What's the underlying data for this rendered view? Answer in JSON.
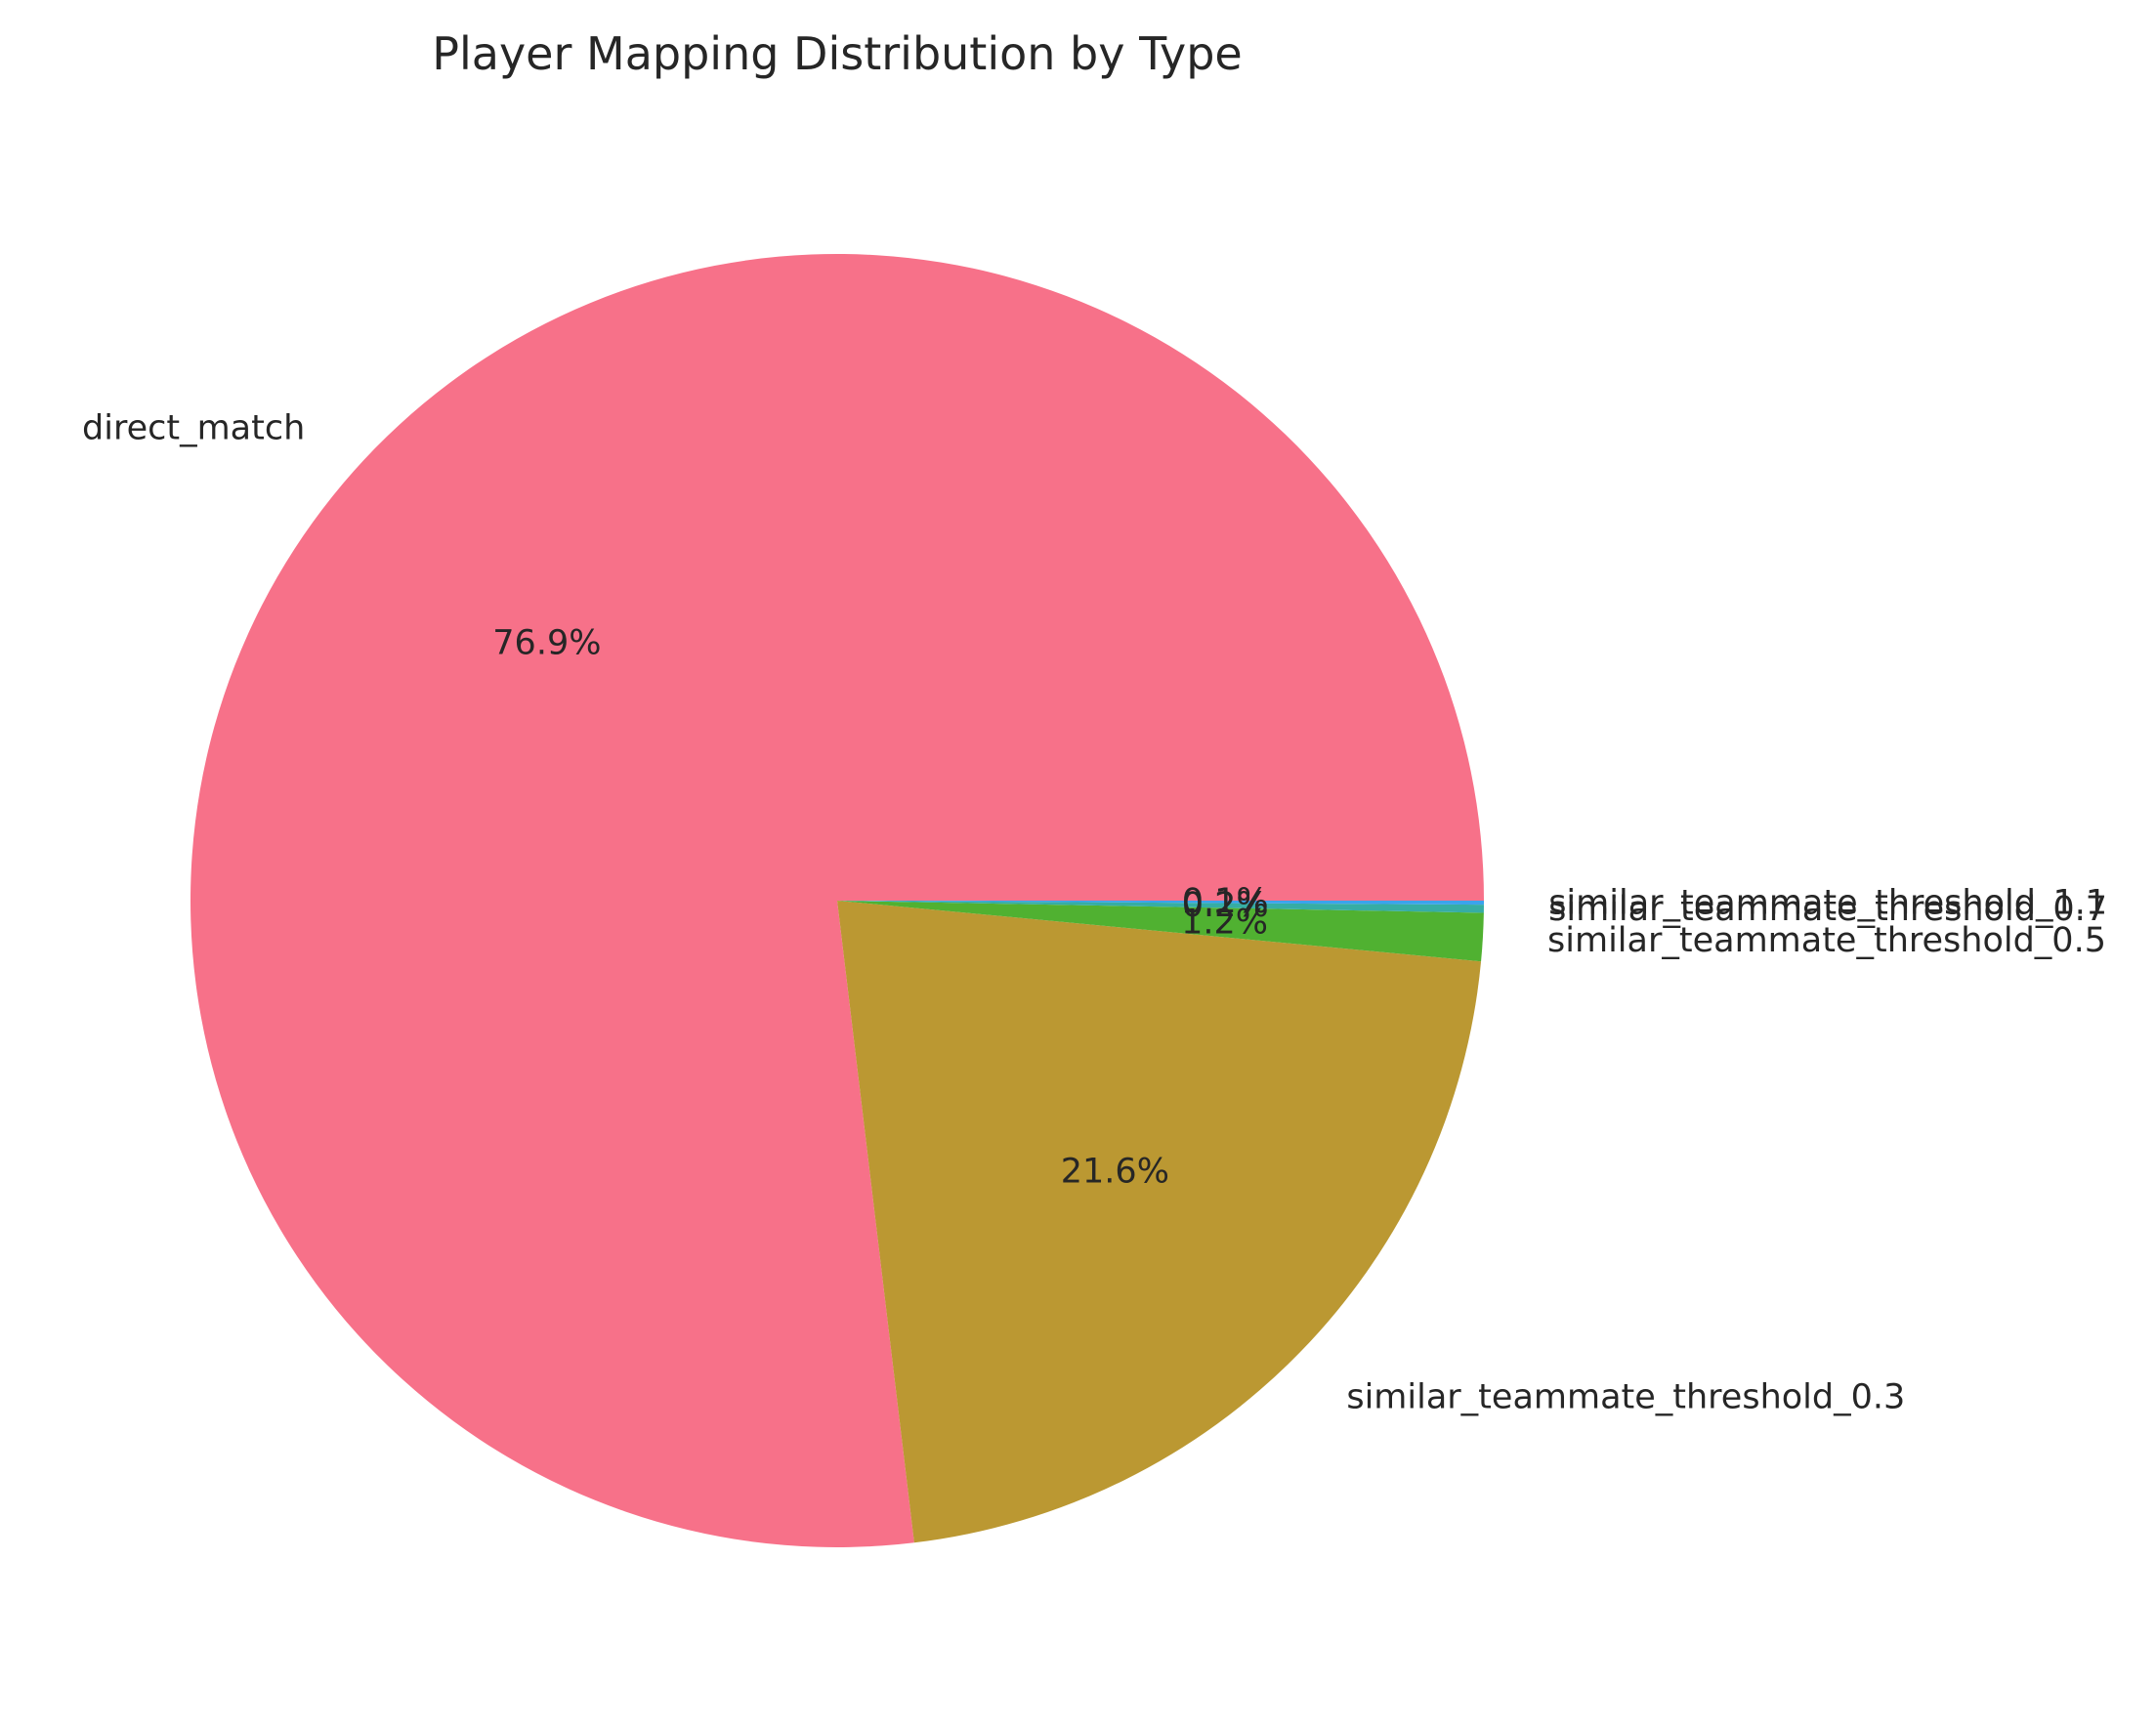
{
  "chart_data": {
    "type": "pie",
    "title": "Player Mapping Distribution by Type",
    "slices": [
      {
        "label": "direct_match",
        "value": 76.9,
        "pct_label": "76.9%",
        "color": "#f77189"
      },
      {
        "label": "similar_teammate_threshold_0.3",
        "value": 21.6,
        "pct_label": "21.6%",
        "color": "#bb9832"
      },
      {
        "label": "similar_teammate_threshold_0.5",
        "value": 1.2,
        "pct_label": "1.2%",
        "color": "#50b131"
      },
      {
        "label": "similar_teammate_threshold_0.7",
        "value": 0.2,
        "pct_label": "0.2%",
        "color": "#36ada4"
      },
      {
        "label": "similar_teammate_threshold_1.1",
        "value": 0.1,
        "pct_label": "0.1%",
        "color": "#3ba3ec"
      }
    ],
    "start_angle_deg": 0,
    "direction": "counterclockwise",
    "legend": "none"
  }
}
